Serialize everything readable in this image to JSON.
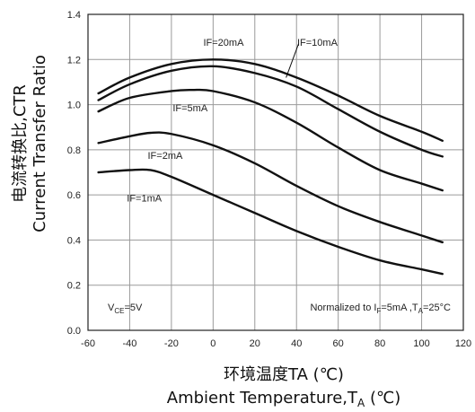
{
  "chart_data": {
    "type": "line",
    "xlabel_cn": "环境温度TA (℃)",
    "xlabel_en": "Ambient Temperature,T",
    "xlabel_sub": "A",
    "xlabel_unit": " (℃)",
    "ylabel_cn": "电流转换比,CTR",
    "ylabel_en": "Current Transfer Ratio",
    "xlim": [
      -60,
      120
    ],
    "ylim": [
      0.0,
      1.4
    ],
    "xticks": [
      -60,
      -40,
      -20,
      0,
      20,
      40,
      60,
      80,
      100,
      120
    ],
    "yticks": [
      0.0,
      0.2,
      0.4,
      0.6,
      0.8,
      1.0,
      1.2,
      1.4
    ],
    "xtick_labels": [
      "-60",
      "-40",
      "-20",
      "0",
      "20",
      "40",
      "60",
      "80",
      "100",
      "120"
    ],
    "ytick_labels": [
      "0.0",
      "0.2",
      "0.4",
      "0.6",
      "0.8",
      "1.0",
      "1.2",
      "1.4"
    ],
    "grid": true,
    "series": [
      {
        "name": "IF=20mA",
        "x": [
          -55,
          -40,
          -20,
          0,
          20,
          40,
          60,
          80,
          100,
          110
        ],
        "y": [
          1.05,
          1.12,
          1.18,
          1.2,
          1.18,
          1.12,
          1.04,
          0.95,
          0.88,
          0.84
        ]
      },
      {
        "name": "IF=10mA",
        "x": [
          -55,
          -40,
          -20,
          0,
          20,
          40,
          60,
          80,
          100,
          110
        ],
        "y": [
          1.02,
          1.09,
          1.15,
          1.17,
          1.14,
          1.08,
          0.98,
          0.88,
          0.8,
          0.77
        ]
      },
      {
        "name": "IF=5mA",
        "x": [
          -55,
          -40,
          -20,
          -10,
          0,
          20,
          40,
          60,
          80,
          100,
          110
        ],
        "y": [
          0.97,
          1.03,
          1.06,
          1.065,
          1.06,
          1.01,
          0.92,
          0.81,
          0.71,
          0.65,
          0.62
        ]
      },
      {
        "name": "IF=2mA",
        "x": [
          -55,
          -40,
          -30,
          -20,
          0,
          20,
          40,
          60,
          80,
          100,
          110
        ],
        "y": [
          0.83,
          0.86,
          0.875,
          0.87,
          0.82,
          0.74,
          0.64,
          0.55,
          0.48,
          0.42,
          0.39
        ]
      },
      {
        "name": "IF=1mA",
        "x": [
          -55,
          -40,
          -30,
          -20,
          0,
          20,
          40,
          60,
          80,
          100,
          110
        ],
        "y": [
          0.7,
          0.71,
          0.71,
          0.68,
          0.6,
          0.52,
          0.44,
          0.37,
          0.31,
          0.27,
          0.25
        ]
      }
    ],
    "labels": [
      {
        "series": "IF=20mA",
        "text": "IF=20mA",
        "x": 5,
        "y": 1.26
      },
      {
        "series": "IF=10mA",
        "text": "IF=10mA",
        "x": 50,
        "y": 1.26
      },
      {
        "series": "IF=5mA",
        "text": "IF=5mA",
        "x": -11,
        "y": 0.97
      },
      {
        "series": "IF=2mA",
        "text": "IF=2mA",
        "x": -23,
        "y": 0.76
      },
      {
        "series": "IF=1mA",
        "text": "IF=1mA",
        "x": -33,
        "y": 0.57
      }
    ],
    "pointer": {
      "from": [
        41,
        1.27
      ],
      "to": [
        35,
        1.12
      ]
    },
    "annotations": {
      "vce_main": "V",
      "vce_sub": "CE",
      "vce_value": "=5V",
      "norm_prefix": "Normalized to I",
      "norm_sub1": "F",
      "norm_mid": "=5mA ,T",
      "norm_sub2": "A",
      "norm_suffix": "=25°C"
    }
  }
}
